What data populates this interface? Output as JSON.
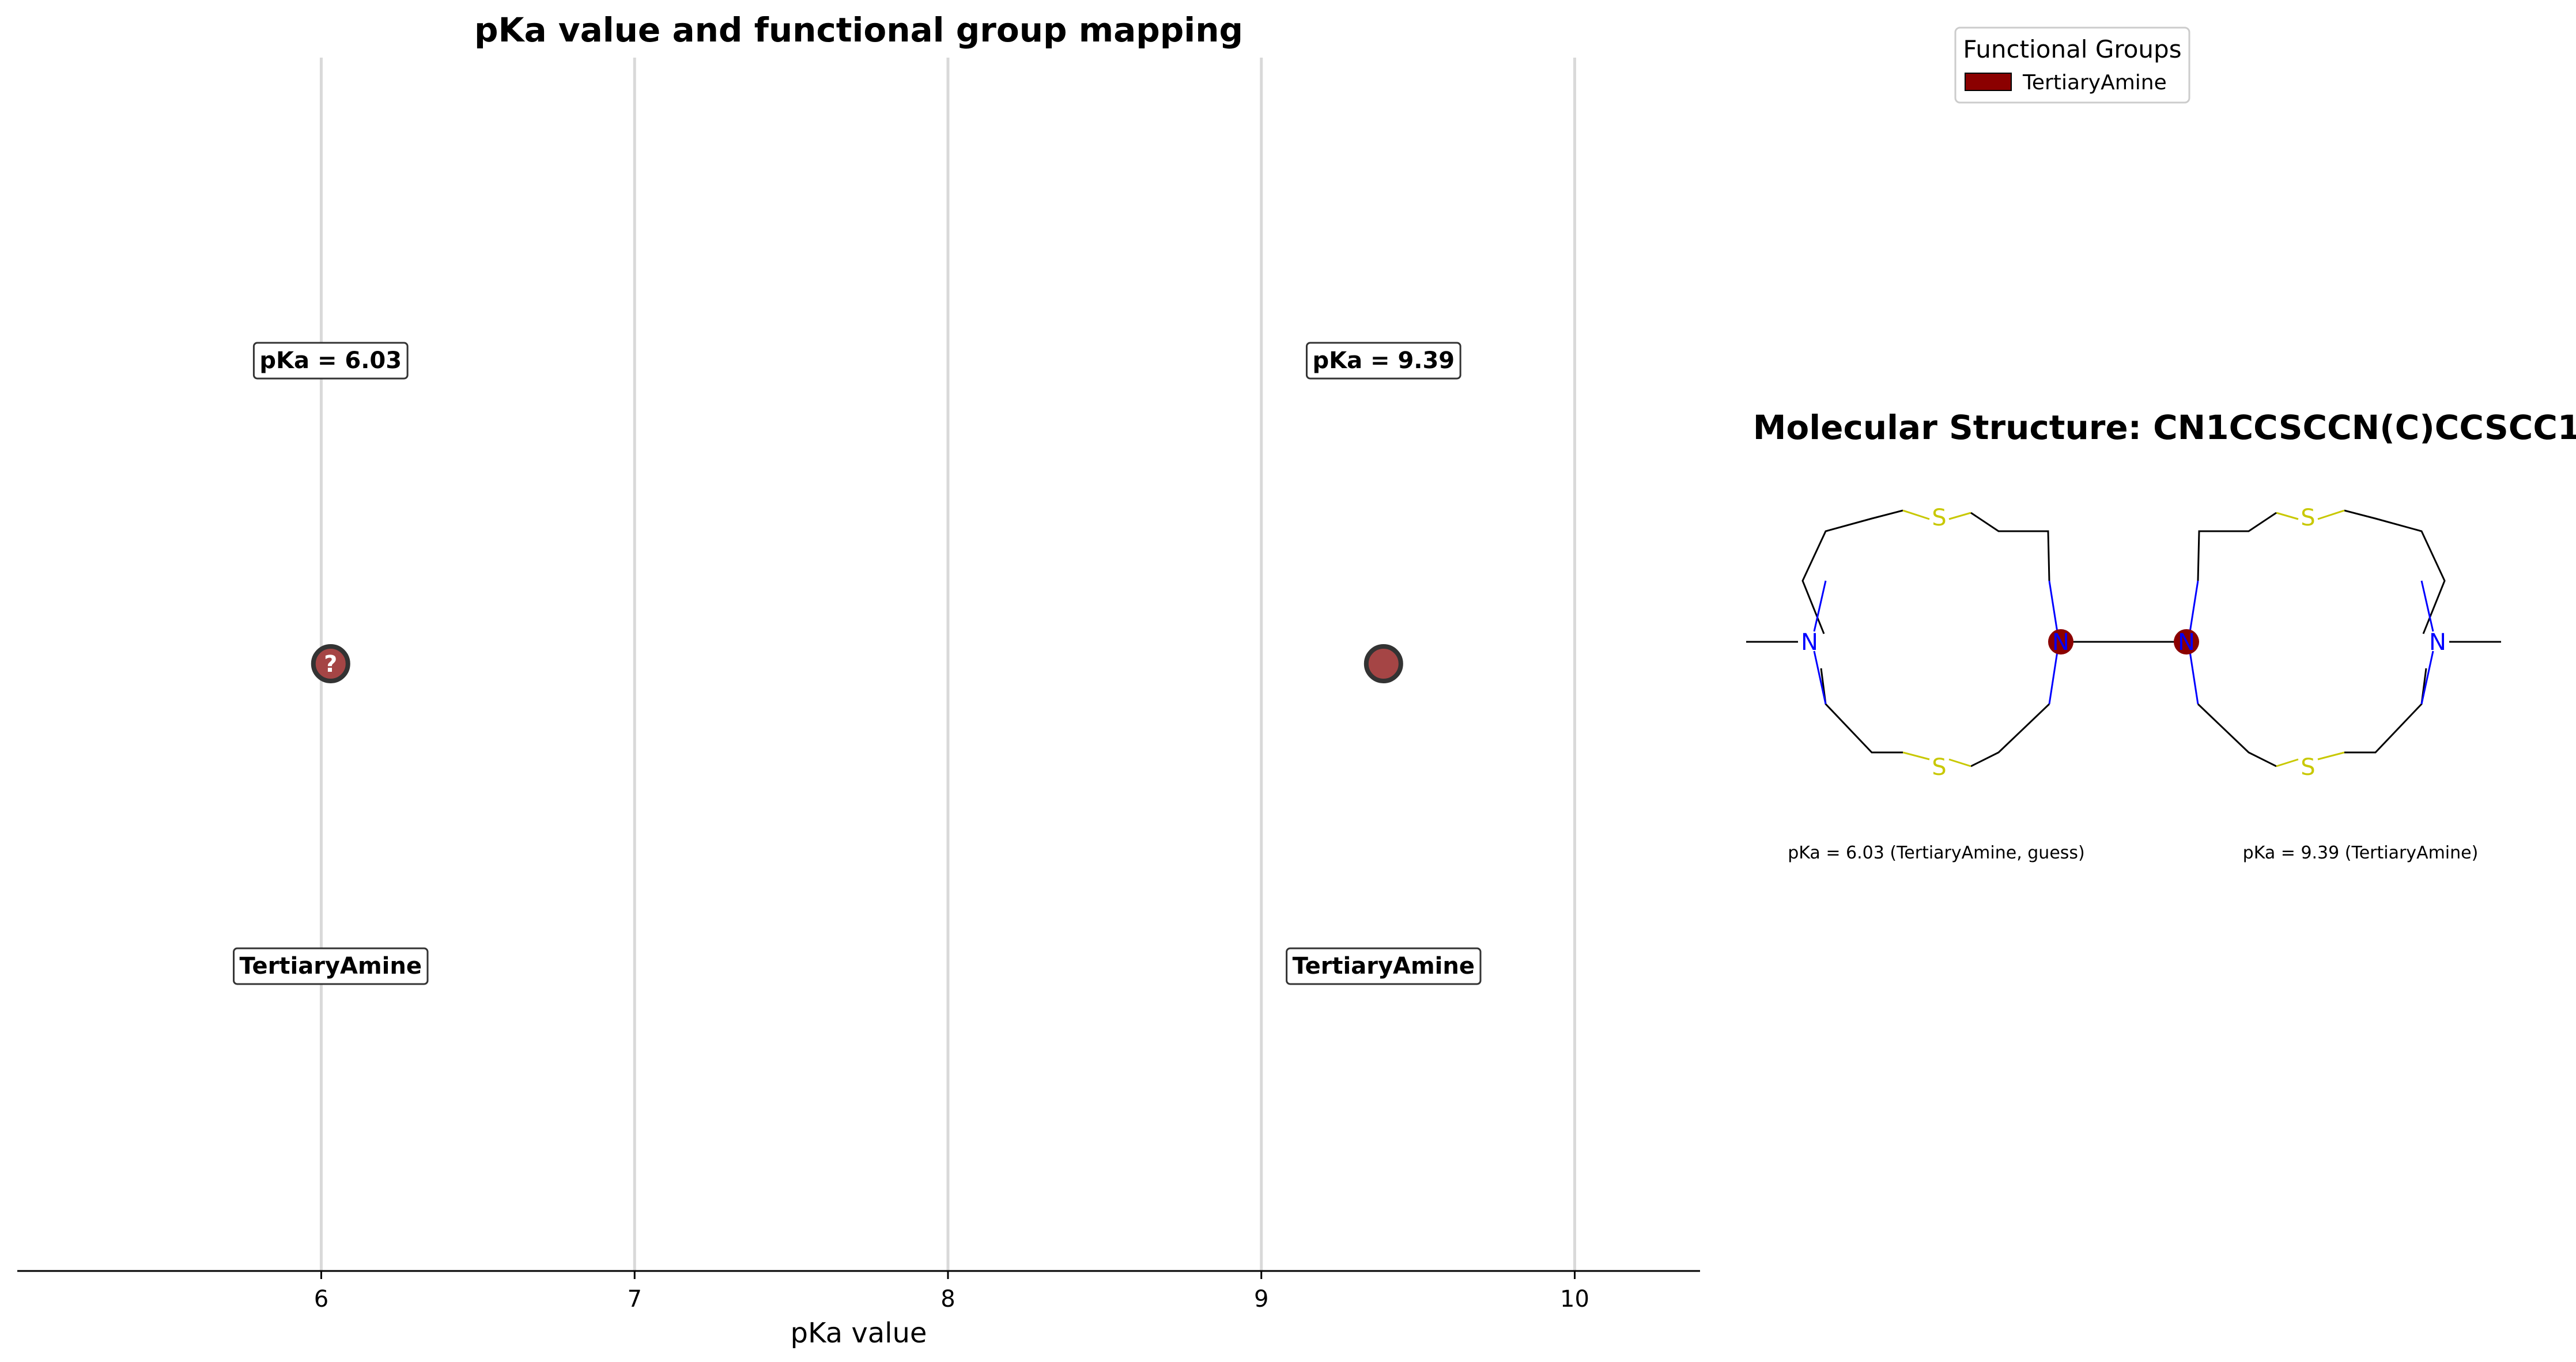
{
  "chart_data": {
    "type": "scatter",
    "title": "pKa value and functional group mapping",
    "xlabel": "pKa value",
    "xlim": [
      5.03,
      10.4
    ],
    "xticks": [
      6,
      7,
      8,
      9,
      10
    ],
    "grid": "vertical",
    "points": [
      {
        "x": 6.03,
        "label": "pKa = 6.03",
        "group": "TertiaryAmine",
        "guess": true,
        "marker_text": "?"
      },
      {
        "x": 9.39,
        "label": "pKa = 9.39",
        "group": "TertiaryAmine",
        "guess": false,
        "marker_text": ""
      }
    ],
    "legend": {
      "title": "Functional Groups",
      "position": "top-right",
      "entries": [
        {
          "name": "TertiaryAmine",
          "color": "#8b0000"
        }
      ]
    }
  },
  "molecule": {
    "title": "Molecular Structure: CN1CCSCCN(C)CCSCC1",
    "captions": [
      "pKa = 6.03 (TertiaryAmine, guess)",
      "pKa = 9.39 (TertiaryAmine)"
    ],
    "atoms": {
      "nitrogen": "N",
      "sulfur": "S"
    },
    "highlighted_site": [
      "right-N",
      "left-N"
    ]
  },
  "colors": {
    "marker_fill": "#a54545",
    "marker_edge": "#333333",
    "grid": "#d9d9d9",
    "nitrogen": "#0000ff",
    "sulfur": "#c8c800",
    "bond": "#000000",
    "highlight": "#8b0000"
  }
}
